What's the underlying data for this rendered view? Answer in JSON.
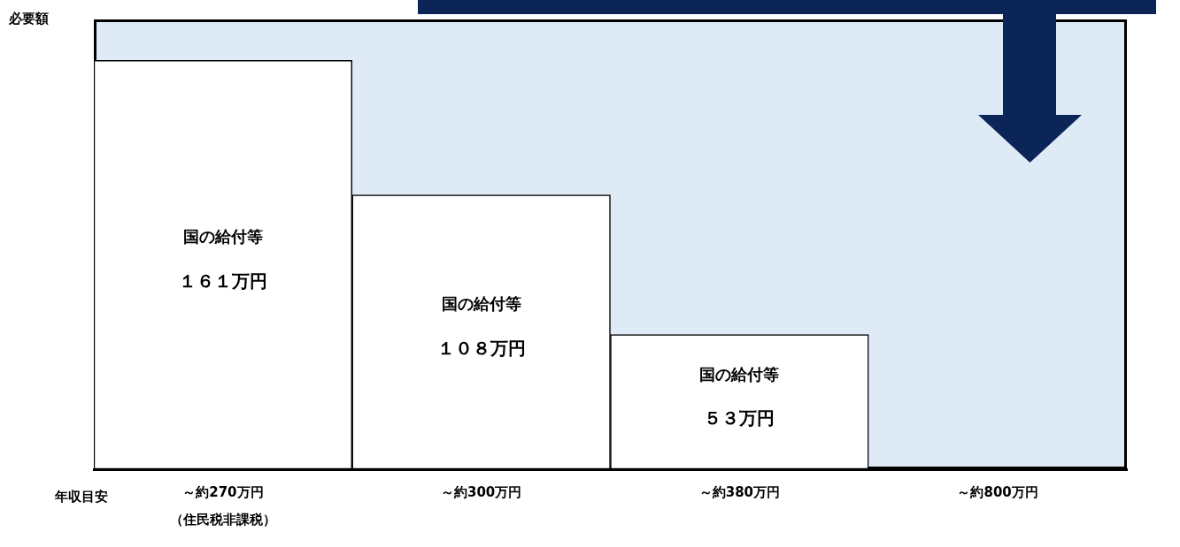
{
  "chart_data": {
    "type": "bar",
    "xlabel": "年収目安",
    "ylabel": "必要額",
    "grid": false,
    "legend": false,
    "tick_labels": "x",
    "categories": [
      "～約270万円",
      "～約300万円",
      "～約380万円",
      "～約800万円"
    ],
    "annotations": [
      "（住民税非課税）"
    ],
    "series": [
      {
        "name": "国の給付等",
        "color": "#ffffff",
        "values": [
          161,
          108,
          53,
          null
        ],
        "value_labels": [
          "１６１万円",
          "１０８万円",
          "５３万円",
          null
        ]
      }
    ]
  }
}
